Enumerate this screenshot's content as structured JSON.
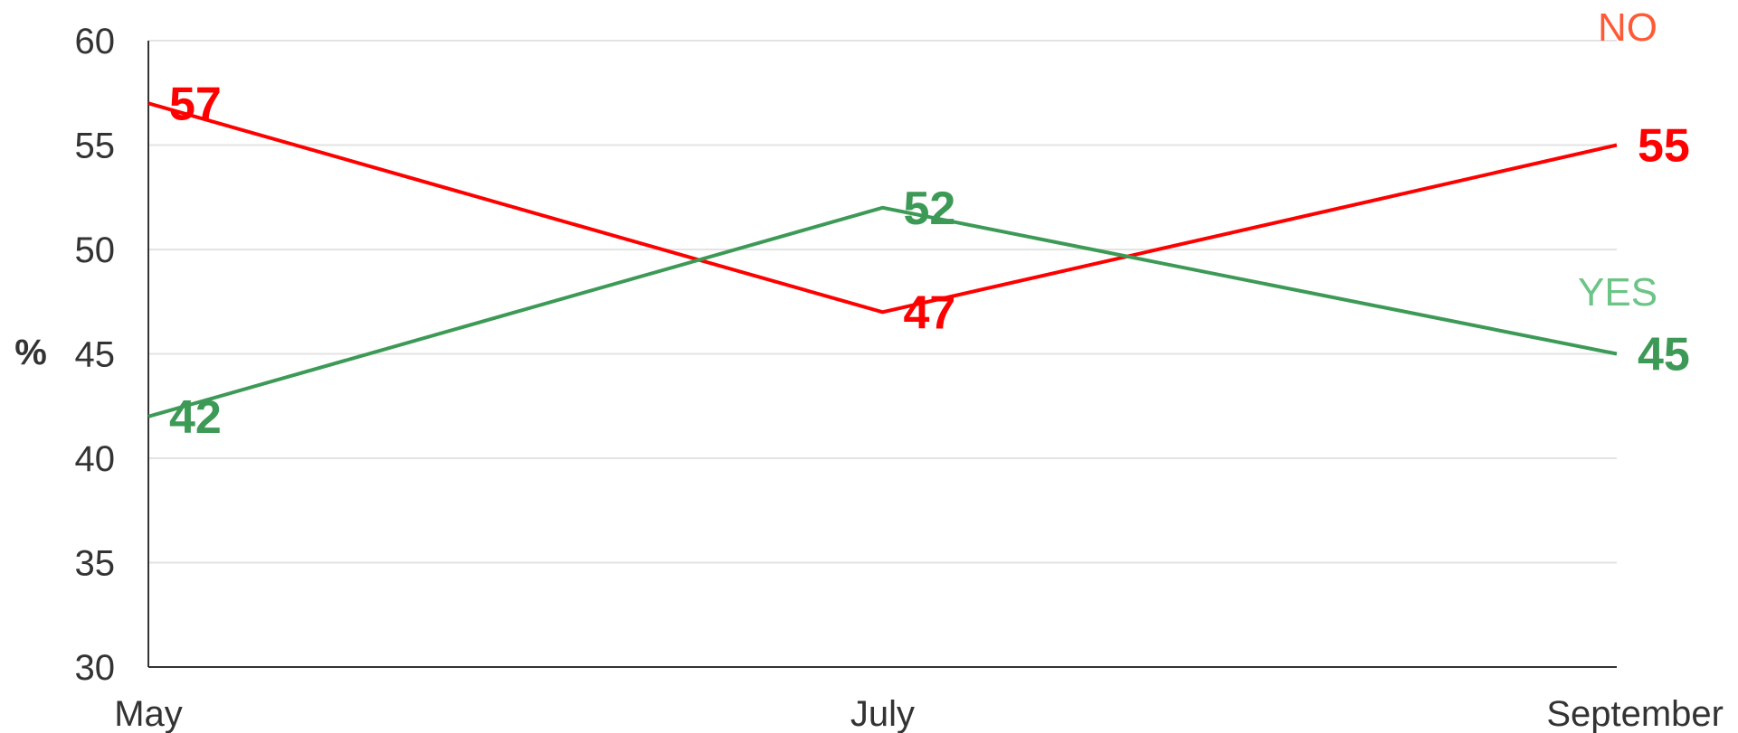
{
  "chart_data": {
    "type": "line",
    "categories": [
      "May",
      "July",
      "September"
    ],
    "ylabel": "%",
    "ylim": [
      30,
      60
    ],
    "yticks": [
      30,
      35,
      40,
      45,
      50,
      55,
      60
    ],
    "grid": true,
    "legend_placement": "right, next to line ends",
    "series": [
      {
        "name": "NO",
        "values": [
          57,
          47,
          55
        ],
        "line_color": "#ff0000",
        "label_color": "#ff0000",
        "legend_color": "#ff5a36"
      },
      {
        "name": "YES",
        "values": [
          42,
          52,
          45
        ],
        "line_color": "#3d9a56",
        "label_color": "#3d9a56",
        "legend_color": "#6cc487"
      }
    ]
  }
}
